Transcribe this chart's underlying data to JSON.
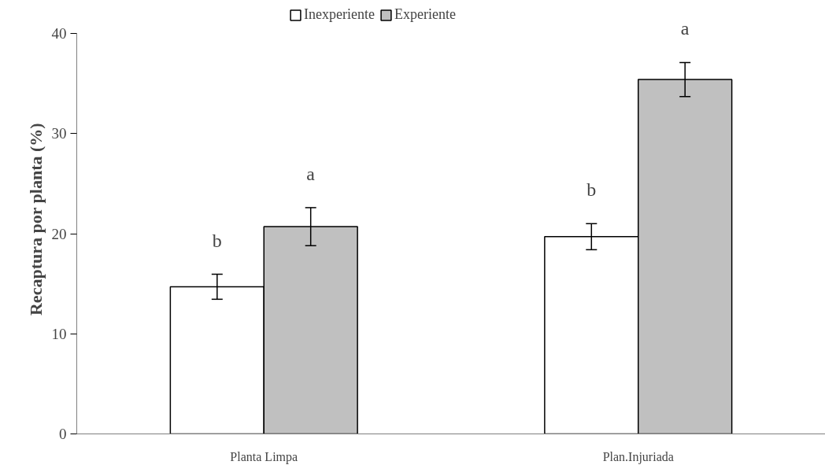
{
  "chart_data": {
    "type": "bar",
    "ylabel": "Recaptura por planta (%)",
    "categories": [
      "Planta Limpa",
      "Plan.Injuriada"
    ],
    "series": [
      {
        "name": "Inexperiente",
        "color": "#ffffff",
        "values": [
          14.7,
          19.7
        ],
        "errors": [
          1.25,
          1.3
        ]
      },
      {
        "name": "Experiente",
        "color": "#c0c0c0",
        "values": [
          20.7,
          35.4
        ],
        "errors": [
          1.9,
          1.7
        ]
      }
    ],
    "annotations": [
      "b",
      "a",
      "b",
      "a"
    ],
    "ylim": [
      0,
      40
    ],
    "yticks": [
      0,
      10,
      20,
      30,
      40
    ],
    "grid": false,
    "legend": "top"
  }
}
